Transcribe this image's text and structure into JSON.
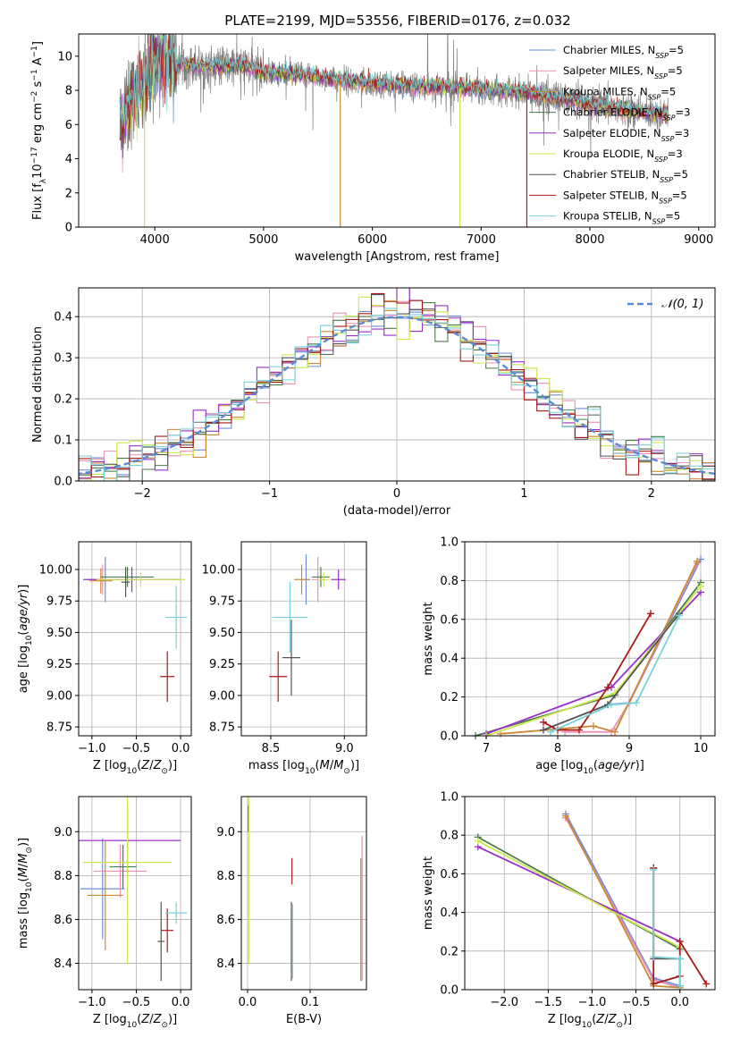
{
  "figure": {
    "title": "PLATE=2199, MJD=53556, FIBERID=0176, z=0.032"
  },
  "models": [
    {
      "name": "Chabrier MILES",
      "nssp": "5",
      "color": "#6f8fd4"
    },
    {
      "name": "Salpeter MILES",
      "nssp": "5",
      "color": "#ee8fb4"
    },
    {
      "name": "Kroupa MILES",
      "nssp": "5",
      "color": "#cc8833"
    },
    {
      "name": "Chabrier ELODIE",
      "nssp": "3",
      "color": "#4c7a4c"
    },
    {
      "name": "Salpeter ELODIE",
      "nssp": "3",
      "color": "#9b30c8"
    },
    {
      "name": "Kroupa ELODIE",
      "nssp": "3",
      "color": "#cce84e"
    },
    {
      "name": "Chabrier STELIB",
      "nssp": "5",
      "color": "#555555"
    },
    {
      "name": "Salpeter STELIB",
      "nssp": "5",
      "color": "#aa1818"
    },
    {
      "name": "Kroupa STELIB",
      "nssp": "5",
      "color": "#77d2d8"
    }
  ],
  "chart_data": [
    {
      "id": "spectrum",
      "type": "line",
      "xlabel": "wavelength [Angstrom, rest frame]",
      "ylabel": "Flux [f_λ 10^-17 erg cm^-2 s^-1 A^-1]",
      "xlim": [
        3300,
        9150
      ],
      "ylim": [
        0,
        11.3
      ],
      "xticks": [
        4000,
        5000,
        6000,
        7000,
        8000,
        9000
      ],
      "yticks": [
        0,
        2,
        4,
        6,
        8,
        10
      ],
      "grid": false,
      "legend_position": "top-right",
      "data_range": [
        3680,
        8720
      ],
      "continuum": {
        "x": [
          3680,
          3750,
          3800,
          3900,
          4000,
          4100,
          4200,
          4400,
          4600,
          4800,
          5000,
          5200,
          5500,
          6000,
          6500,
          7000,
          7500,
          8000,
          8500,
          8720
        ],
        "y": [
          6.0,
          6.8,
          7.6,
          8.4,
          9.7,
          9.6,
          9.6,
          9.4,
          9.4,
          9.5,
          9.0,
          9.0,
          8.8,
          8.4,
          8.2,
          8.1,
          7.8,
          7.2,
          6.7,
          6.6
        ]
      },
      "model_drops": [
        {
          "model": "Kroupa ELODIE",
          "x": 3905
        },
        {
          "model": "Kroupa MILES",
          "x": 5705
        },
        {
          "model": "Kroupa ELODIE",
          "x": 6805
        },
        {
          "model": "Salpeter STELIB",
          "x": 7420
        }
      ]
    },
    {
      "id": "residuals",
      "type": "histogram",
      "xlabel": "(data-model)/error",
      "ylabel": "Normed distribution",
      "xlim": [
        -2.5,
        2.5
      ],
      "ylim": [
        0,
        0.47
      ],
      "xticks": [
        -2,
        -1,
        0,
        1,
        2
      ],
      "yticks": [
        0.0,
        0.1,
        0.2,
        0.3,
        0.4
      ],
      "grid": true,
      "legend_position": "top-right",
      "reference_label": "𝒩(0, 1)",
      "bin_width": 0.1
    },
    {
      "id": "age-vs-Z",
      "type": "errorbar",
      "xlabel": "Z [log10(Z/Z⊙)]",
      "ylabel": "age [log10(age/yr)]",
      "xlim": [
        -1.15,
        0.12
      ],
      "ylim": [
        8.68,
        10.22
      ],
      "xticks": [
        -1.0,
        -0.5,
        0.0
      ],
      "yticks": [
        8.75,
        9.0,
        9.25,
        9.5,
        9.75,
        10.0
      ],
      "grid": true,
      "points": [
        {
          "model": "Chabrier MILES",
          "x": -0.85,
          "y": 9.92,
          "xerr": 0.2,
          "yerr": 0.18
        },
        {
          "model": "Salpeter MILES",
          "x": -0.88,
          "y": 9.92,
          "xerr": 0.15,
          "yerr": 0.12
        },
        {
          "model": "Kroupa MILES",
          "x": -0.9,
          "y": 9.91,
          "xerr": 0.13,
          "yerr": 0.1
        },
        {
          "model": "Chabrier ELODIE",
          "x": -0.6,
          "y": 9.94,
          "xerr": 0.3,
          "yerr": 0.08
        },
        {
          "model": "Salpeter ELODIE",
          "x": -0.55,
          "y": 9.92,
          "xerr": 0.55,
          "yerr": 0.1
        },
        {
          "model": "Kroupa ELODIE",
          "x": -0.45,
          "y": 9.92,
          "xerr": 0.5,
          "yerr": 0.06
        },
        {
          "model": "Chabrier STELIB",
          "x": -0.62,
          "y": 9.9,
          "xerr": 0.05,
          "yerr": 0.12
        },
        {
          "model": "Salpeter STELIB",
          "x": -0.15,
          "y": 9.15,
          "xerr": 0.08,
          "yerr": 0.2
        },
        {
          "model": "Kroupa STELIB",
          "x": -0.05,
          "y": 9.62,
          "xerr": 0.12,
          "yerr": 0.25
        }
      ]
    },
    {
      "id": "age-vs-mass",
      "type": "errorbar",
      "xlabel": "mass [log10(M/M⊙)]",
      "ylabel": "",
      "xlim": [
        8.3,
        9.15
      ],
      "ylim": [
        8.68,
        10.22
      ],
      "xticks": [
        8.5,
        9.0
      ],
      "yticks": [
        8.75,
        9.0,
        9.25,
        9.5,
        9.75,
        10.0
      ],
      "grid": true,
      "points": [
        {
          "model": "Chabrier MILES",
          "x": 8.74,
          "y": 9.92,
          "xerr": 0.03,
          "yerr": 0.2
        },
        {
          "model": "Salpeter MILES",
          "x": 8.82,
          "y": 9.92,
          "xerr": 0.04,
          "yerr": 0.18
        },
        {
          "model": "Kroupa MILES",
          "x": 8.71,
          "y": 9.92,
          "xerr": 0.05,
          "yerr": 0.12
        },
        {
          "model": "Chabrier ELODIE",
          "x": 8.84,
          "y": 9.94,
          "xerr": 0.06,
          "yerr": 0.08
        },
        {
          "model": "Salpeter ELODIE",
          "x": 8.96,
          "y": 9.92,
          "xerr": 0.05,
          "yerr": 0.08
        },
        {
          "model": "Kroupa ELODIE",
          "x": 8.86,
          "y": 9.92,
          "xerr": 0.04,
          "yerr": 0.06
        },
        {
          "model": "Chabrier STELIB",
          "x": 8.64,
          "y": 9.3,
          "xerr": 0.06,
          "yerr": 0.3
        },
        {
          "model": "Salpeter STELIB",
          "x": 8.55,
          "y": 9.15,
          "xerr": 0.06,
          "yerr": 0.2
        },
        {
          "model": "Kroupa STELIB",
          "x": 8.63,
          "y": 9.62,
          "xerr": 0.12,
          "yerr": 0.28
        }
      ]
    },
    {
      "id": "weight-vs-age",
      "type": "line",
      "xlabel": "age [log10(age/yr)]",
      "ylabel": "mass weight",
      "xlim": [
        6.7,
        10.2
      ],
      "ylim": [
        0,
        1.0
      ],
      "xticks": [
        7,
        8,
        9,
        10
      ],
      "yticks": [
        0.0,
        0.2,
        0.4,
        0.6,
        0.8,
        1.0
      ],
      "grid": true,
      "series": [
        {
          "model": "Chabrier MILES",
          "x": [
            7.8,
            8.7,
            9.0,
            10.0
          ],
          "y": [
            0.03,
            0.16,
            0.17,
            0.91
          ]
        },
        {
          "model": "Salpeter MILES",
          "x": [
            8.1,
            8.75,
            9.0,
            9.95
          ],
          "y": [
            0.02,
            0.02,
            0.17,
            0.89
          ]
        },
        {
          "model": "Kroupa MILES",
          "x": [
            7.2,
            8.5,
            8.8,
            9.95
          ],
          "y": [
            0.01,
            0.05,
            0.02,
            0.9
          ]
        },
        {
          "model": "Chabrier ELODIE",
          "x": [
            6.85,
            8.8,
            10.0
          ],
          "y": [
            0.0,
            0.21,
            0.79
          ]
        },
        {
          "model": "Salpeter ELODIE",
          "x": [
            7.0,
            8.75,
            10.0
          ],
          "y": [
            0.01,
            0.25,
            0.74
          ]
        },
        {
          "model": "Kroupa ELODIE",
          "x": [
            7.0,
            8.8,
            10.0
          ],
          "y": [
            0.0,
            0.22,
            0.77
          ]
        },
        {
          "model": "Chabrier STELIB",
          "x": [
            7.8,
            8.7,
            9.7
          ],
          "y": [
            0.03,
            0.16,
            0.63
          ]
        },
        {
          "model": "Salpeter STELIB",
          "x": [
            7.8,
            8.0,
            8.3,
            8.7,
            9.3
          ],
          "y": [
            0.07,
            0.03,
            0.03,
            0.25,
            0.63
          ]
        },
        {
          "model": "Kroupa STELIB",
          "x": [
            7.9,
            8.75,
            9.1,
            9.7
          ],
          "y": [
            0.02,
            0.16,
            0.17,
            0.62
          ]
        }
      ]
    },
    {
      "id": "mass-vs-Z",
      "type": "errorbar",
      "xlabel": "Z [log10(Z/Z⊙)]",
      "ylabel": "mass [log10(M/M⊙)]",
      "xlim": [
        -1.15,
        0.12
      ],
      "ylim": [
        8.28,
        9.16
      ],
      "xticks": [
        -1.0,
        -0.5,
        0.0
      ],
      "yticks": [
        8.4,
        8.6,
        8.8,
        9.0
      ],
      "grid": true,
      "points": [
        {
          "model": "Chabrier MILES",
          "x": -0.88,
          "y": 8.74,
          "xerr": 0.25,
          "yerr": 0.23
        },
        {
          "model": "Salpeter MILES",
          "x": -0.68,
          "y": 8.82,
          "xerr": 0.3,
          "yerr": 0.12
        },
        {
          "model": "Kroupa MILES",
          "x": -0.85,
          "y": 8.71,
          "xerr": 0.2,
          "yerr": 0.25
        },
        {
          "model": "Chabrier ELODIE",
          "x": -0.65,
          "y": 8.84,
          "xerr": 0.15,
          "yerr": 0.1
        },
        {
          "model": "Salpeter ELODIE",
          "x": -0.6,
          "y": 8.96,
          "xerr": 0.6,
          "yerr": 0.15
        },
        {
          "model": "Kroupa ELODIE",
          "x": -0.6,
          "y": 8.86,
          "xerr": 0.5,
          "yerr": 0.46
        },
        {
          "model": "Chabrier STELIB",
          "x": -0.22,
          "y": 8.5,
          "xerr": 0.04,
          "yerr": 0.18
        },
        {
          "model": "Salpeter STELIB",
          "x": -0.15,
          "y": 8.55,
          "xerr": 0.07,
          "yerr": 0.1
        },
        {
          "model": "Kroupa STELIB",
          "x": -0.05,
          "y": 8.63,
          "xerr": 0.12,
          "yerr": 0.05
        }
      ]
    },
    {
      "id": "mass-vs-EBV",
      "type": "errorbar",
      "xlabel": "E(B-V)",
      "ylabel": "",
      "xlim": [
        -0.01,
        0.19
      ],
      "ylim": [
        8.28,
        9.16
      ],
      "xticks": [
        0.0,
        0.1
      ],
      "yticks": [
        8.4,
        8.6,
        8.8,
        9.0
      ],
      "grid": true,
      "points": [
        {
          "model": "Salpeter ELODIE",
          "x": 0.001,
          "y": 9.06,
          "xerr": 0,
          "yerr": 0.06
        },
        {
          "model": "Kroupa ELODIE",
          "x": 0.002,
          "y": 8.86,
          "xerr": 0,
          "yerr": 0.46
        },
        {
          "model": "Chabrier STELIB",
          "x": 0.07,
          "y": 8.5,
          "xerr": 0,
          "yerr": 0.18
        },
        {
          "model": "Salpeter STELIB",
          "x": 0.071,
          "y": 8.82,
          "xerr": 0,
          "yerr": 0.06
        },
        {
          "model": "Kroupa STELIB",
          "x": 0.072,
          "y": 8.5,
          "xerr": 0,
          "yerr": 0.17
        },
        {
          "model": "Salpeter MILES",
          "x": 0.183,
          "y": 8.65,
          "xerr": 0,
          "yerr": 0.33
        },
        {
          "model": "Kroupa MILES",
          "x": 0.181,
          "y": 8.6,
          "xerr": 0,
          "yerr": 0.28
        }
      ]
    },
    {
      "id": "weight-vs-Z",
      "type": "line",
      "xlabel": "Z [log10(Z/Z⊙)]",
      "ylabel": "mass weight",
      "xlim": [
        -2.45,
        0.4
      ],
      "ylim": [
        0,
        1.0
      ],
      "xticks": [
        -2.0,
        -1.5,
        -1.0,
        -0.5,
        0.0
      ],
      "yticks": [
        0.0,
        0.2,
        0.4,
        0.6,
        0.8,
        1.0
      ],
      "grid": true,
      "series": [
        {
          "model": "Chabrier MILES",
          "x": [
            -1.3,
            -0.3,
            0.0
          ],
          "y": [
            0.91,
            0.06,
            0.02
          ]
        },
        {
          "model": "Salpeter MILES",
          "x": [
            -1.3,
            -0.3,
            0.0
          ],
          "y": [
            0.89,
            0.05,
            0.01
          ]
        },
        {
          "model": "Kroupa MILES",
          "x": [
            -1.3,
            -0.3,
            0.0
          ],
          "y": [
            0.9,
            0.02,
            0.01
          ]
        },
        {
          "model": "Chabrier ELODIE",
          "x": [
            -2.3,
            0.0
          ],
          "y": [
            0.79,
            0.21
          ]
        },
        {
          "model": "Salpeter ELODIE",
          "x": [
            -2.3,
            0.0
          ],
          "y": [
            0.74,
            0.25
          ]
        },
        {
          "model": "Kroupa ELODIE",
          "x": [
            -2.3,
            0.0
          ],
          "y": [
            0.77,
            0.22
          ]
        },
        {
          "model": "Chabrier STELIB",
          "x": [
            -0.3,
            -0.3,
            0.0,
            0.0
          ],
          "y": [
            0.63,
            0.16,
            0.16,
            0.02
          ]
        },
        {
          "model": "Salpeter STELIB",
          "x": [
            -0.3,
            -0.3,
            0.0,
            0.0,
            0.3
          ],
          "y": [
            0.63,
            0.03,
            0.07,
            0.25,
            0.03
          ]
        },
        {
          "model": "Kroupa STELIB",
          "x": [
            -0.3,
            -0.3,
            0.0,
            0.0
          ],
          "y": [
            0.62,
            0.17,
            0.16,
            0.02
          ]
        }
      ]
    }
  ]
}
